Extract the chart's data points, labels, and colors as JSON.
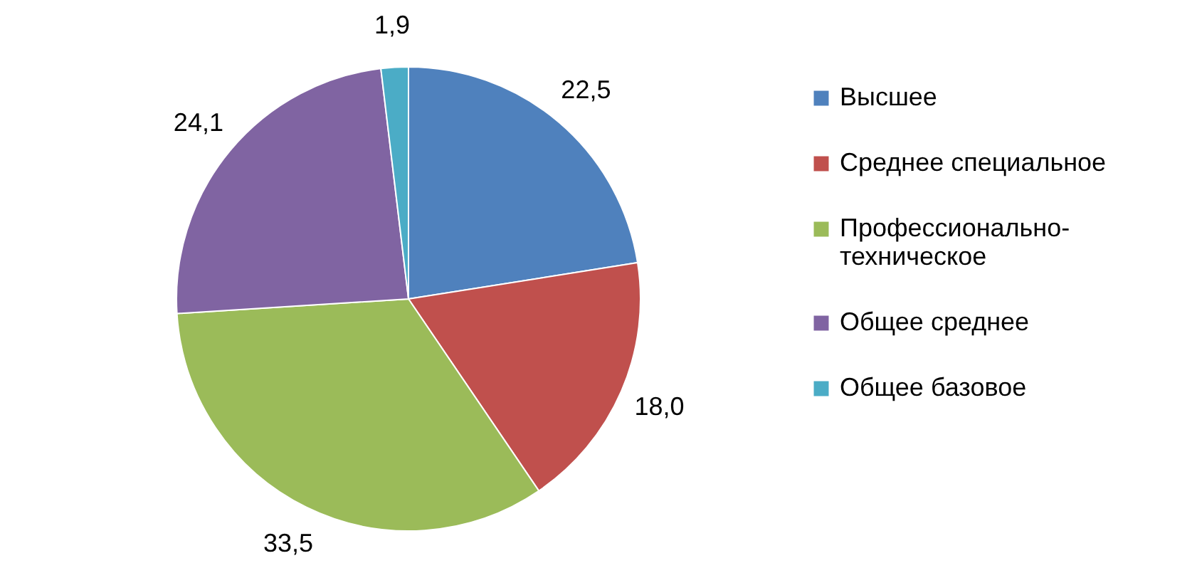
{
  "chart_data": {
    "type": "pie",
    "categories": [
      "Высшее",
      "Среднее специальное",
      "Профессионально-техническое",
      "Общее среднее",
      "Общее базовое"
    ],
    "values": [
      22.5,
      18.0,
      33.5,
      24.1,
      1.9
    ],
    "value_labels": [
      "22,5",
      "18,0",
      "33,5",
      "24,1",
      "1,9"
    ],
    "colors": [
      "#4f81bd",
      "#c0504d",
      "#9bbb59",
      "#8064a2",
      "#4bacc6"
    ],
    "legend": "right"
  }
}
